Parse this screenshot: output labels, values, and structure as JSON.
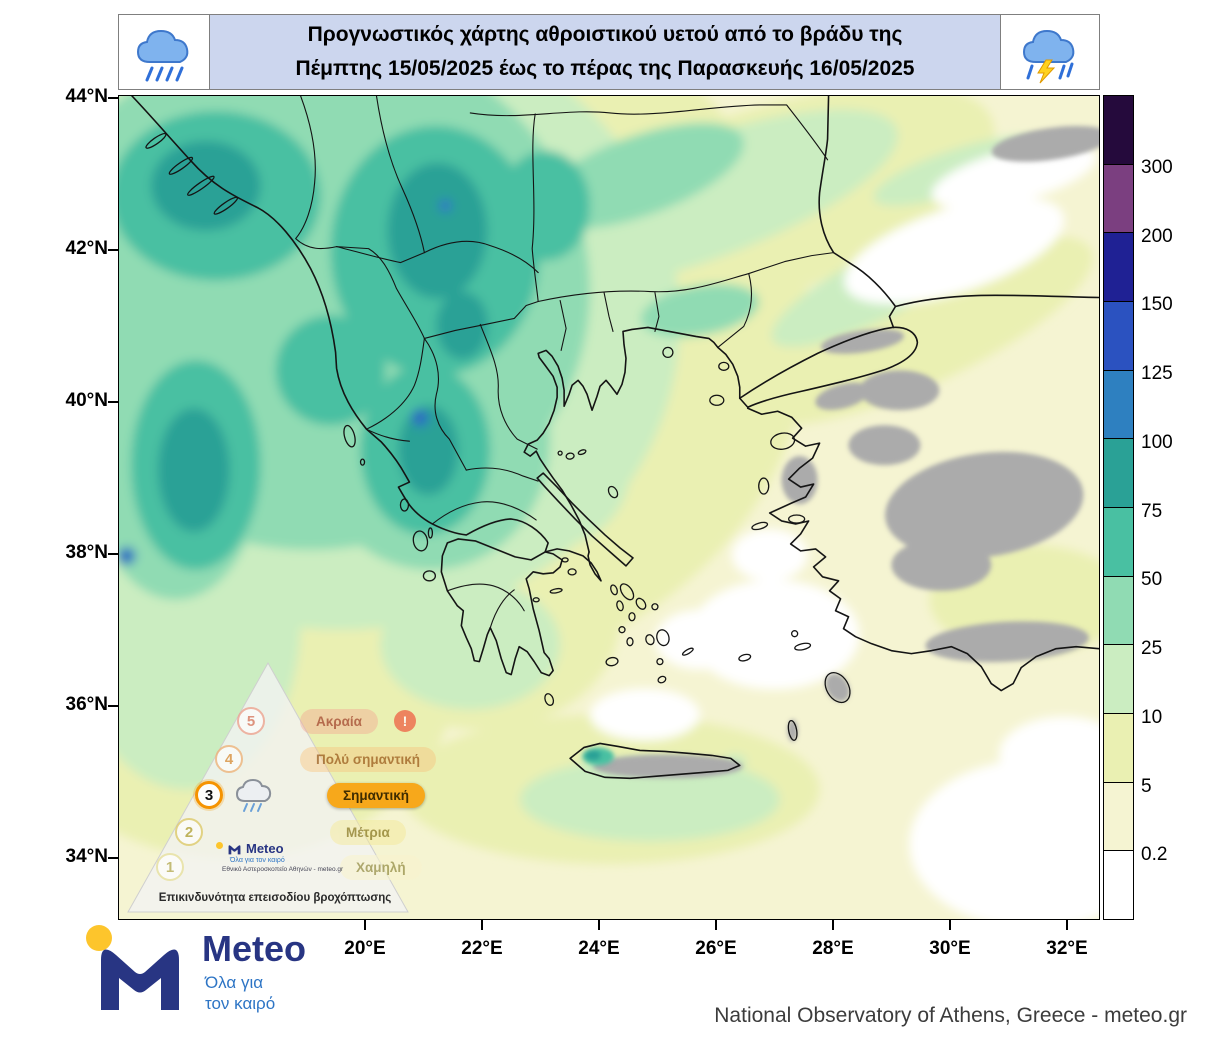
{
  "header": {
    "title_line1": "Προγνωστικός χάρτης αθροιστικού υετού από το βράδυ της",
    "title_line2": "Πέμπτης 15/05/2025 έως το πέρας της Παρασκευής 16/05/2025"
  },
  "map": {
    "lat_labels": [
      "44°N",
      "42°N",
      "40°N",
      "38°N",
      "36°N",
      "34°N"
    ],
    "lon_labels": [
      "20°E",
      "22°E",
      "24°E",
      "26°E",
      "28°E",
      "30°E",
      "32°E"
    ],
    "nodata_color": "#ababab"
  },
  "colorbar": {
    "labels_top_to_bottom": [
      "300",
      "200",
      "150",
      "125",
      "100",
      "75",
      "50",
      "25",
      "10",
      "5",
      "0.2"
    ],
    "colors_top_to_bottom": [
      "#250a3c",
      "#7b3f80",
      "#1f2194",
      "#2b52c0",
      "#2e80c0",
      "#2aa196",
      "#49c0a2",
      "#90dbb3",
      "#cbedc1",
      "#eaf0b2",
      "#f5f4d2",
      "#ffffff"
    ]
  },
  "risk_legend": {
    "caption": "Επικινδυνότητα επεισοδίου βροχόπτωσης",
    "levels": [
      {
        "num": "5",
        "label": "Ακραία",
        "badge": "!"
      },
      {
        "num": "4",
        "label": "Πολύ σημαντική"
      },
      {
        "num": "3",
        "label": "Σημαντική",
        "active": true
      },
      {
        "num": "2",
        "label": "Μέτρια"
      },
      {
        "num": "1",
        "label": "Χαμηλή"
      }
    ],
    "mini_logo": {
      "name": "Meteo",
      "tagline": "Όλα για τον καιρό",
      "org": "Εθνικό Αστεροσκοπείο Αθηνών - meteo.gr"
    }
  },
  "footer": {
    "logo_name": "Meteo",
    "logo_tagline_line1": "Όλα για",
    "logo_tagline_line2": "τον καιρό",
    "attribution": "National Observatory of Athens, Greece - meteo.gr"
  }
}
